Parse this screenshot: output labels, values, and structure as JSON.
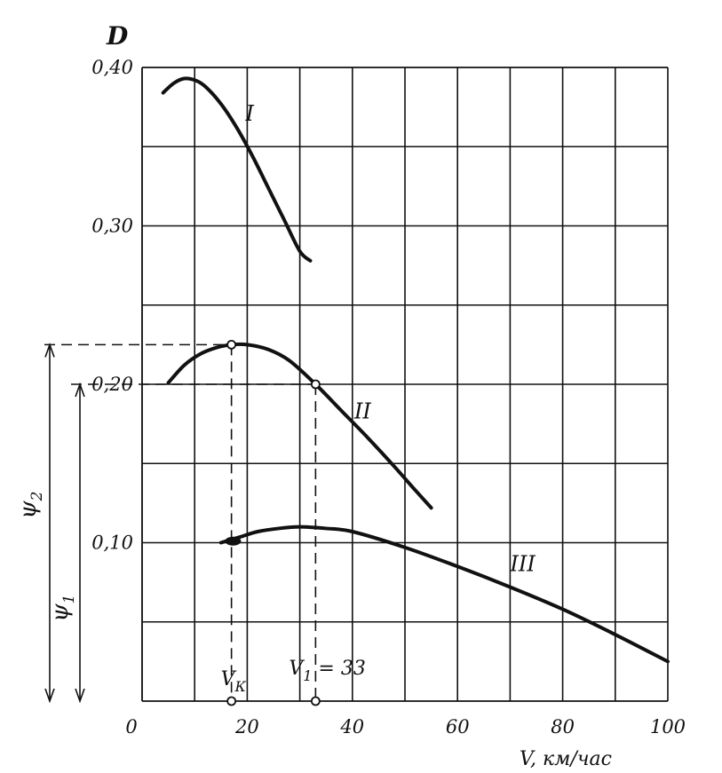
{
  "chart_data": {
    "type": "line",
    "ylabel": "D",
    "xlabel": "V, км/час",
    "xlim": [
      0,
      100
    ],
    "ylim": [
      0,
      0.4
    ],
    "x_ticks": [
      "0",
      "20",
      "40",
      "60",
      "80",
      "100"
    ],
    "y_ticks": [
      {
        "value": 0.1,
        "label": "0,10"
      },
      {
        "value": 0.2,
        "label": "0,20"
      },
      {
        "value": 0.3,
        "label": "0,30"
      },
      {
        "value": 0.4,
        "label": "0,40"
      }
    ],
    "grid": true,
    "series": [
      {
        "name": "I",
        "x": [
          4,
          6,
          8,
          10,
          12,
          15,
          18,
          21,
          24,
          27,
          30,
          32
        ],
        "y": [
          0.384,
          0.39,
          0.393,
          0.392,
          0.388,
          0.377,
          0.362,
          0.344,
          0.324,
          0.304,
          0.284,
          0.278
        ]
      },
      {
        "name": "II",
        "x": [
          5,
          8,
          11,
          14,
          17,
          20,
          24,
          28,
          33,
          38,
          43,
          48,
          52,
          55
        ],
        "y": [
          0.201,
          0.212,
          0.219,
          0.223,
          0.225,
          0.225,
          0.222,
          0.215,
          0.2,
          0.183,
          0.166,
          0.148,
          0.133,
          0.122
        ]
      },
      {
        "name": "III",
        "x": [
          15,
          17,
          19,
          22,
          26,
          30,
          35,
          40,
          50,
          60,
          70,
          80,
          90,
          100
        ],
        "y": [
          0.1,
          0.102,
          0.104,
          0.107,
          0.109,
          0.11,
          0.109,
          0.107,
          0.097,
          0.085,
          0.072,
          0.058,
          0.042,
          0.025
        ]
      }
    ],
    "annotations": {
      "vk": {
        "x": 17,
        "label": "V",
        "sub": "К"
      },
      "v1": {
        "x": 33,
        "label": "V",
        "sub": "1",
        "suffix": " = 33"
      },
      "psi2": {
        "y": 0.225,
        "label": "ψ",
        "sub": "2"
      },
      "psi1": {
        "y": 0.2,
        "label": "ψ",
        "sub": "1"
      },
      "point_vk": {
        "x": 17,
        "y": 0.225
      },
      "point_v1": {
        "x": 33,
        "y": 0.2
      }
    }
  }
}
